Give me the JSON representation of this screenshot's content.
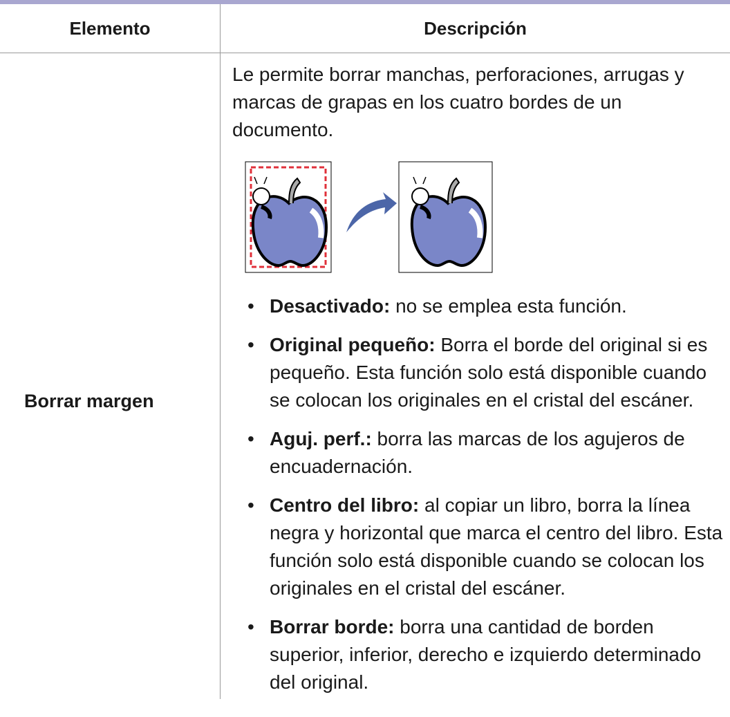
{
  "table": {
    "header": [
      "Elemento",
      "Descripción"
    ],
    "rows": [
      {
        "element": "Borrar margen",
        "intro": "Le permite borrar manchas, perforaciones, arrugas y marcas de grapas en los cuatro bordes de un documento.",
        "bullets": [
          {
            "term": "Desactivado:",
            "text": "no se emplea esta función."
          },
          {
            "term": "Original pequeño:",
            "text": "Borra el borde del original si es pequeño. Esta función solo está disponible cuando se colocan los originales en el cristal del escáner."
          },
          {
            "term": "Aguj. perf.:",
            "text": "borra las marcas de los agujeros de encuadernación."
          },
          {
            "term": "Centro del libro:",
            "text": "al copiar un libro, borra la línea negra y horizontal que marca el centro del libro. Esta función solo está disponible cuando se colocan los originales en el cristal del escáner."
          },
          {
            "term": "Borrar borde:",
            "text": "borra una cantidad de borden superior, inferior, derecho e izquierdo determinado del original."
          }
        ]
      }
    ]
  }
}
